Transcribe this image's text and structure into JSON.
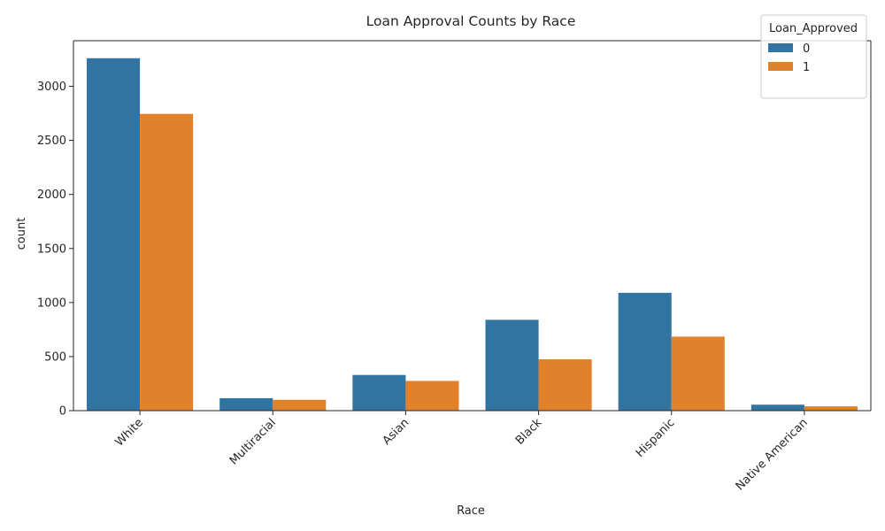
{
  "chart_data": {
    "type": "bar",
    "title": "Loan Approval Counts by Race",
    "xlabel": "Race",
    "ylabel": "count",
    "categories": [
      "White",
      "Multiracial",
      "Asian",
      "Black",
      "Hispanic",
      "Native American"
    ],
    "series": [
      {
        "name": "0",
        "color": "#3274a1",
        "values": [
          3260,
          115,
          330,
          840,
          1090,
          55
        ]
      },
      {
        "name": "1",
        "color": "#e1812c",
        "values": [
          2745,
          100,
          275,
          475,
          685,
          40
        ]
      }
    ],
    "ylim": [
      0,
      3422
    ],
    "yticks": [
      0,
      500,
      1000,
      1500,
      2000,
      2500,
      3000
    ],
    "legend": {
      "title": "Loan_Approved",
      "placement": "top-right"
    },
    "grid": false
  }
}
